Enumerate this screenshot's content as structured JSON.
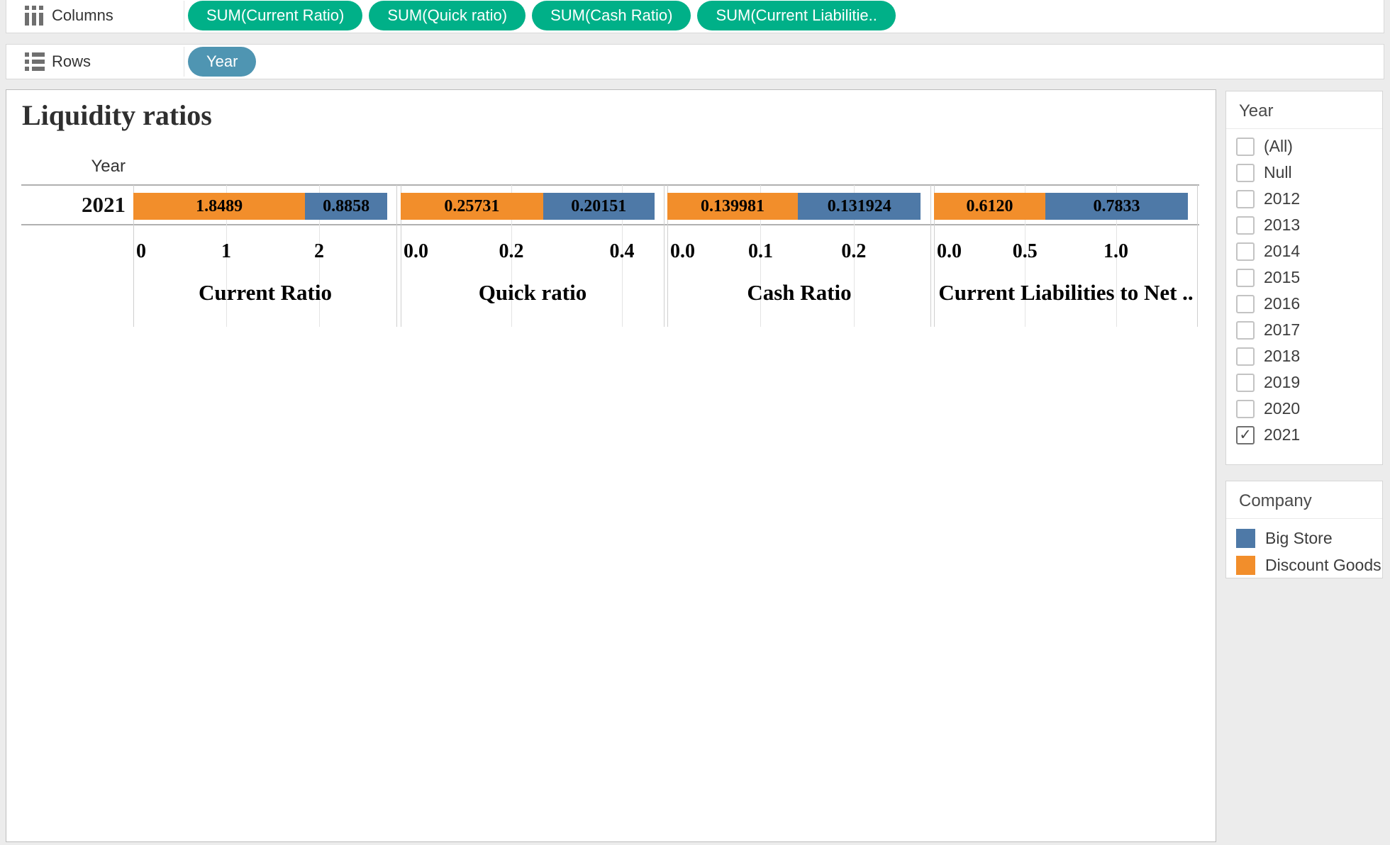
{
  "shelves": {
    "columns_label": "Columns",
    "rows_label": "Rows",
    "column_pills": [
      "SUM(Current Ratio)",
      "SUM(Quick ratio)",
      "SUM(Cash Ratio)",
      "SUM(Current Liabilitie.."
    ],
    "row_pills": [
      "Year"
    ],
    "pill_colors": {
      "measure_green": "#00b088",
      "dimension_blue": "#4f95b2"
    }
  },
  "chart_data": {
    "type": "bar",
    "orientation": "horizontal-stacked",
    "title": "Liquidity ratios",
    "row_dimension_header": "Year",
    "rows": [
      "2021"
    ],
    "legend_position": "right",
    "grid": true,
    "series": [
      {
        "name": "Discount Goods",
        "color": "#F28E2B"
      },
      {
        "name": "Big Store",
        "color": "#4E79A7"
      }
    ],
    "panes": [
      {
        "measure": "Current Ratio",
        "axis_title": "Current Ratio",
        "ticks": [
          0,
          1,
          2
        ],
        "tick_labels": [
          "0",
          "1",
          "2"
        ],
        "axis_max": 2.84,
        "values": {
          "Discount Goods": 1.8489,
          "Big Store": 0.8858
        },
        "labels": [
          "1.8489",
          "0.8858"
        ]
      },
      {
        "measure": "Quick ratio",
        "axis_title": "Quick ratio",
        "ticks": [
          0,
          0.2,
          0.4
        ],
        "tick_labels": [
          "0.0",
          "0.2",
          "0.4"
        ],
        "axis_max": 0.477,
        "values": {
          "Discount Goods": 0.25731,
          "Big Store": 0.20151
        },
        "labels": [
          "0.25731",
          "0.20151"
        ]
      },
      {
        "measure": "Cash Ratio",
        "axis_title": "Cash Ratio",
        "ticks": [
          0,
          0.1,
          0.2
        ],
        "tick_labels": [
          "0.0",
          "0.1",
          "0.2"
        ],
        "axis_max": 0.283,
        "values": {
          "Discount Goods": 0.139981,
          "Big Store": 0.131924
        },
        "labels": [
          "0.139981",
          "0.131924"
        ]
      },
      {
        "measure": "Current Liabilities to Net ..",
        "axis_title": "Current Liabilities to Net ..",
        "ticks": [
          0,
          0.5,
          1.0
        ],
        "tick_labels": [
          "0.0",
          "0.5",
          "1.0"
        ],
        "axis_max": 1.45,
        "values": {
          "Discount Goods": 0.612,
          "Big Store": 0.7833
        },
        "labels": [
          "0.6120",
          "0.7833"
        ]
      }
    ]
  },
  "filters": {
    "year": {
      "title": "Year",
      "options": [
        {
          "label": "(All)",
          "checked": false
        },
        {
          "label": "Null",
          "checked": false
        },
        {
          "label": "2012",
          "checked": false
        },
        {
          "label": "2013",
          "checked": false
        },
        {
          "label": "2014",
          "checked": false
        },
        {
          "label": "2015",
          "checked": false
        },
        {
          "label": "2016",
          "checked": false
        },
        {
          "label": "2017",
          "checked": false
        },
        {
          "label": "2018",
          "checked": false
        },
        {
          "label": "2019",
          "checked": false
        },
        {
          "label": "2020",
          "checked": false
        },
        {
          "label": "2021",
          "checked": true
        }
      ]
    }
  },
  "legend": {
    "title": "Company",
    "items": [
      {
        "label": "Big Store",
        "color": "#4E79A7"
      },
      {
        "label": "Discount Goods",
        "color": "#F28E2B"
      }
    ]
  }
}
